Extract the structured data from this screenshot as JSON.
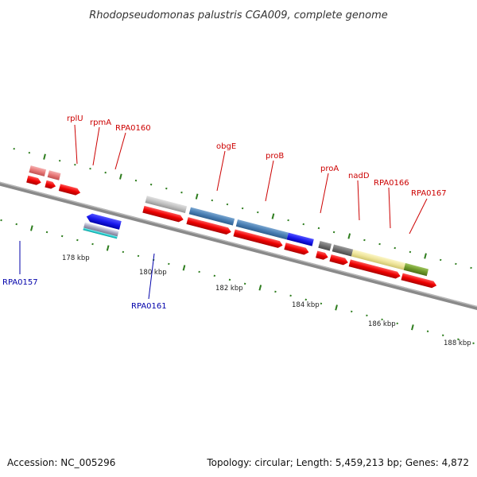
{
  "title": "Rhodopseudomonas palustris CGA009, complete genome",
  "footer": {
    "accession": "Accession: NC_005296",
    "summary": "Topology: circular; Length: 5,459,213 bp; Genes: 4,872"
  },
  "scale_labels": [
    "178 kbp",
    "180 kbp",
    "182 kbp",
    "184 kbp",
    "186 kbp",
    "188 kbp"
  ],
  "gene_labels": [
    {
      "text": "rplU",
      "color": "#cc0000"
    },
    {
      "text": "rpmA",
      "color": "#cc0000"
    },
    {
      "text": "RPA0160",
      "color": "#cc0000"
    },
    {
      "text": "obgE",
      "color": "#cc0000"
    },
    {
      "text": "proB",
      "color": "#cc0000"
    },
    {
      "text": "proA",
      "color": "#cc0000"
    },
    {
      "text": "nadD",
      "color": "#cc0000"
    },
    {
      "text": "RPA0166",
      "color": "#cc0000"
    },
    {
      "text": "RPA0167",
      "color": "#cc0000"
    },
    {
      "text": "RPA0157",
      "color": "#0000aa"
    },
    {
      "text": "RPA0161",
      "color": "#0000aa"
    }
  ],
  "colors": {
    "backbone": "#8a8a8a",
    "tick": "#2e7d1e",
    "cds_red": "#ee0000",
    "cds_blue": "#1a1aee",
    "label_forward": "#cc0000",
    "label_reverse": "#0000aa"
  }
}
